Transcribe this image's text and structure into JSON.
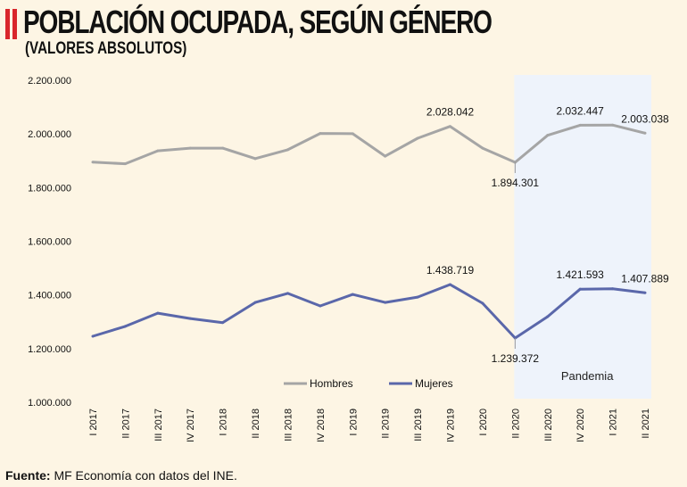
{
  "header": {
    "title": "POBLACIÓN OCUPADA, SEGÚN GÉNERO",
    "subtitle": "(VALORES ABSOLUTOS)"
  },
  "footer": {
    "source_label": "Fuente:",
    "source_text": "MF Economía con datos del INE."
  },
  "colors": {
    "background": "#fdf5e4",
    "title_accent": "#d9262b",
    "hombres": "#a5a5a5",
    "mujeres": "#5a67aa",
    "pandemia_shade": "#eef3fb"
  },
  "chart_data": {
    "type": "line",
    "title": "POBLACIÓN OCUPADA, SEGÚN GÉNERO",
    "subtitle": "(VALORES ABSOLUTOS)",
    "xlabel": "",
    "ylabel": "",
    "ylim": [
      1000000,
      2200000
    ],
    "yticks": [
      1000000,
      1200000,
      1400000,
      1600000,
      1800000,
      2000000,
      2200000
    ],
    "ytick_labels": [
      "1.000.000",
      "1.200.000",
      "1.400.000",
      "1.600.000",
      "1.800.000",
      "2.000.000",
      "2.200.000"
    ],
    "grid": false,
    "legend_position": "bottom-center",
    "categories": [
      "I 2017",
      "II 2017",
      "III 2017",
      "IV 2017",
      "I 2018",
      "II 2018",
      "III 2018",
      "IV 2018",
      "I 2019",
      "II 2019",
      "III 2019",
      "IV 2019",
      "I 2020",
      "II 2020",
      "III 2020",
      "IV 2020",
      "I 2021",
      "II 2021"
    ],
    "series": [
      {
        "name": "Hombres",
        "color": "#a5a5a5",
        "values": [
          1895000,
          1889000,
          1937000,
          1947000,
          1947000,
          1908000,
          1941000,
          2002000,
          2001000,
          1917000,
          1984000,
          2028042,
          1947000,
          1894301,
          1995000,
          2032447,
          2033000,
          2003038
        ]
      },
      {
        "name": "Mujeres",
        "color": "#5a67aa",
        "values": [
          1246000,
          1283000,
          1332000,
          1312000,
          1297000,
          1372000,
          1406000,
          1359000,
          1402000,
          1372000,
          1392000,
          1438719,
          1369000,
          1239372,
          1319000,
          1421593,
          1423000,
          1407889
        ]
      }
    ],
    "annotations": [
      {
        "series": "Hombres",
        "category": "IV 2019",
        "label": "2.028.042",
        "position": "above"
      },
      {
        "series": "Hombres",
        "category": "II 2020",
        "label": "1.894.301",
        "position": "below"
      },
      {
        "series": "Hombres",
        "category": "IV 2020",
        "label": "2.032.447",
        "position": "above"
      },
      {
        "series": "Hombres",
        "category": "II 2021",
        "label": "2.003.038",
        "position": "above"
      },
      {
        "series": "Mujeres",
        "category": "IV 2019",
        "label": "1.438.719",
        "position": "above"
      },
      {
        "series": "Mujeres",
        "category": "II 2020",
        "label": "1.239.372",
        "position": "below"
      },
      {
        "series": "Mujeres",
        "category": "IV 2020",
        "label": "1.421.593",
        "position": "above"
      },
      {
        "series": "Mujeres",
        "category": "II 2021",
        "label": "1.407.889",
        "position": "above"
      }
    ],
    "shaded_region": {
      "label": "Pandemia",
      "from": "II 2020",
      "to": "II 2021"
    }
  }
}
